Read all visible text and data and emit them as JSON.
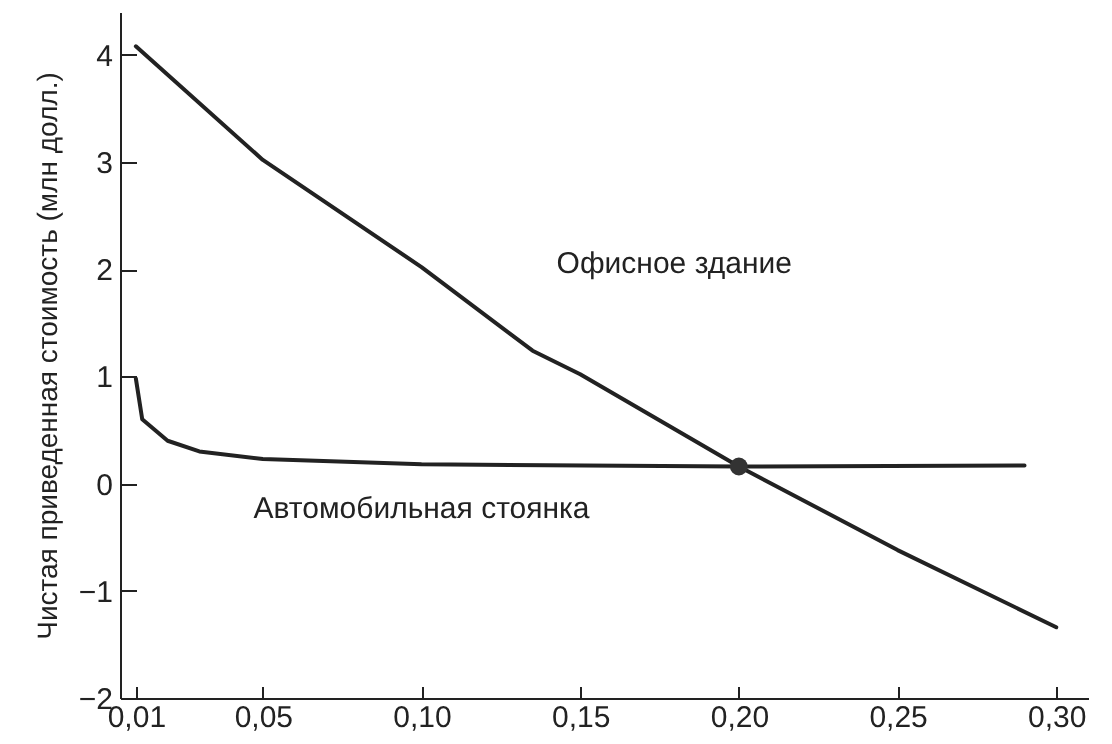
{
  "chart_data": {
    "type": "line",
    "ylabel": "Чистая приведенная стоимость (млн долл.)",
    "xlim": [
      0.005,
      0.31
    ],
    "ylim": [
      -2,
      4.4
    ],
    "xticks": [
      {
        "value": 0.01,
        "label": "0,01"
      },
      {
        "value": 0.05,
        "label": "0,05"
      },
      {
        "value": 0.1,
        "label": "0,10"
      },
      {
        "value": 0.15,
        "label": "0,15"
      },
      {
        "value": 0.2,
        "label": "0,20"
      },
      {
        "value": 0.25,
        "label": "0,25"
      },
      {
        "value": 0.3,
        "label": "0,30"
      }
    ],
    "yticks": [
      -2,
      -1,
      0,
      1,
      2,
      3,
      4
    ],
    "line_style": "solid",
    "series": [
      {
        "name": "Офисное здание",
        "color": "#222222",
        "x": [
          0.01,
          0.05,
          0.1,
          0.135,
          0.15,
          0.2,
          0.25,
          0.3
        ],
        "values": [
          4.08,
          3.02,
          2.02,
          1.24,
          1.02,
          0.16,
          -0.62,
          -1.34
        ]
      },
      {
        "name": "Автомобильная стоянка",
        "color": "#222222",
        "x": [
          0.01,
          0.012,
          0.02,
          0.03,
          0.05,
          0.1,
          0.2,
          0.29
        ],
        "values": [
          0.98,
          0.6,
          0.4,
          0.3,
          0.23,
          0.18,
          0.16,
          0.17
        ]
      },
      {
        "type": "scatter",
        "marker": "circle",
        "color": "#333333",
        "x": [
          0.2
        ],
        "values": [
          0.16
        ]
      }
    ]
  }
}
